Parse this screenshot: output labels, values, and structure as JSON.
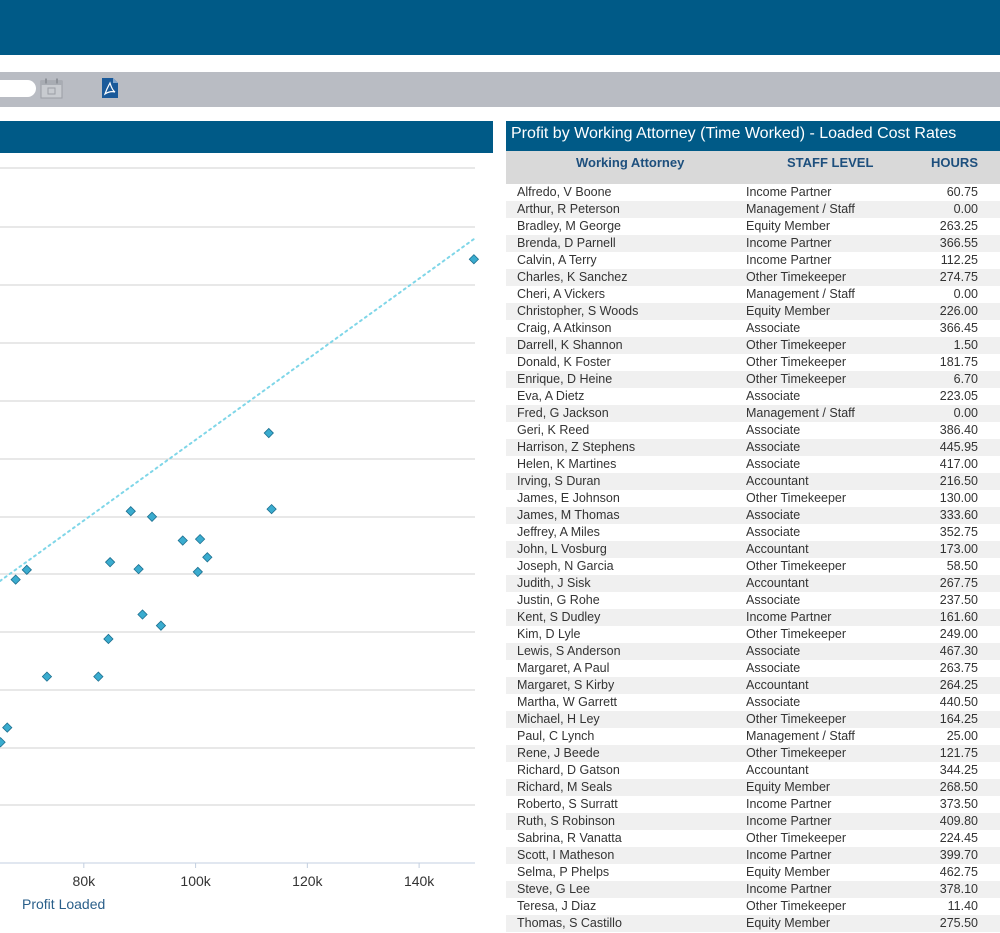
{
  "toolbar": {
    "calendar_icon": "calendar-icon",
    "pdf_icon": "pdf-icon"
  },
  "colors": {
    "header": "#005a87",
    "toolbar": "#b9bcc3",
    "marker": "#3aaccf",
    "trend": "#7fd6e8"
  },
  "chart_data": {
    "type": "scatter",
    "xlabel": "Profit Loaded",
    "x_tick_labels": [
      "80k",
      "100k",
      "120k",
      "140k"
    ],
    "x_tick_values": [
      80000,
      100000,
      120000,
      140000
    ],
    "xlim": [
      65000,
      150000
    ],
    "trendline": {
      "style": "dotted",
      "from": [
        65000,
        59.6
      ],
      "to": [
        150000,
        10.5
      ]
    },
    "points": [
      [
        149800,
        13.5
      ],
      [
        113100,
        38.4
      ],
      [
        113600,
        49.3
      ],
      [
        88400,
        49.6
      ],
      [
        92200,
        50.4
      ],
      [
        97700,
        53.8
      ],
      [
        100800,
        53.6
      ],
      [
        102100,
        56.2
      ],
      [
        69800,
        58.0
      ],
      [
        67800,
        59.4
      ],
      [
        84700,
        56.9
      ],
      [
        89800,
        57.9
      ],
      [
        100400,
        58.3
      ],
      [
        90500,
        64.4
      ],
      [
        93800,
        66.0
      ],
      [
        84400,
        67.9
      ],
      [
        73400,
        73.3
      ],
      [
        82600,
        73.3
      ],
      [
        66300,
        80.6
      ],
      [
        65100,
        82.7
      ]
    ]
  },
  "table": {
    "title": "Profit by Working Attorney (Time Worked) - Loaded Cost Rates",
    "headers": {
      "name": "Working Attorney",
      "level": "STAFF LEVEL",
      "hours": "HOURS"
    },
    "rows": [
      {
        "name": "Alfredo, V Boone",
        "level": "Income Partner",
        "hours": "60.75"
      },
      {
        "name": "Arthur, R Peterson",
        "level": "Management / Staff",
        "hours": "0.00"
      },
      {
        "name": "Bradley, M George",
        "level": "Equity Member",
        "hours": "263.25"
      },
      {
        "name": "Brenda, D Parnell",
        "level": "Income Partner",
        "hours": "366.55"
      },
      {
        "name": "Calvin, A Terry",
        "level": "Income Partner",
        "hours": "112.25"
      },
      {
        "name": "Charles, K Sanchez",
        "level": "Other Timekeeper",
        "hours": "274.75"
      },
      {
        "name": "Cheri, A Vickers",
        "level": "Management / Staff",
        "hours": "0.00"
      },
      {
        "name": "Christopher, S Woods",
        "level": "Equity Member",
        "hours": "226.00"
      },
      {
        "name": "Craig, A Atkinson",
        "level": "Associate",
        "hours": "366.45"
      },
      {
        "name": "Darrell, K Shannon",
        "level": "Other Timekeeper",
        "hours": "1.50"
      },
      {
        "name": "Donald, K Foster",
        "level": "Other Timekeeper",
        "hours": "181.75"
      },
      {
        "name": "Enrique, D Heine",
        "level": "Other Timekeeper",
        "hours": "6.70"
      },
      {
        "name": "Eva, A Dietz",
        "level": "Associate",
        "hours": "223.05"
      },
      {
        "name": "Fred, G Jackson",
        "level": "Management / Staff",
        "hours": "0.00"
      },
      {
        "name": "Geri, K Reed",
        "level": "Associate",
        "hours": "386.40"
      },
      {
        "name": "Harrison, Z Stephens",
        "level": "Associate",
        "hours": "445.95"
      },
      {
        "name": "Helen, K Martines",
        "level": "Associate",
        "hours": "417.00"
      },
      {
        "name": "Irving, S Duran",
        "level": "Accountant",
        "hours": "216.50"
      },
      {
        "name": "James, E Johnson",
        "level": "Other Timekeeper",
        "hours": "130.00"
      },
      {
        "name": "James, M Thomas",
        "level": "Associate",
        "hours": "333.60"
      },
      {
        "name": "Jeffrey, A Miles",
        "level": "Associate",
        "hours": "352.75"
      },
      {
        "name": "John, L Vosburg",
        "level": "Accountant",
        "hours": "173.00"
      },
      {
        "name": "Joseph, N Garcia",
        "level": "Other Timekeeper",
        "hours": "58.50"
      },
      {
        "name": "Judith, J Sisk",
        "level": "Accountant",
        "hours": "267.75"
      },
      {
        "name": "Justin, G Rohe",
        "level": "Associate",
        "hours": "237.50"
      },
      {
        "name": "Kent, S Dudley",
        "level": "Income Partner",
        "hours": "161.60"
      },
      {
        "name": "Kim, D Lyle",
        "level": "Other Timekeeper",
        "hours": "249.00"
      },
      {
        "name": "Lewis, S Anderson",
        "level": "Associate",
        "hours": "467.30"
      },
      {
        "name": "Margaret, A Paul",
        "level": "Associate",
        "hours": "263.75"
      },
      {
        "name": "Margaret, S Kirby",
        "level": "Accountant",
        "hours": "264.25"
      },
      {
        "name": "Martha, W Garrett",
        "level": "Associate",
        "hours": "440.50"
      },
      {
        "name": "Michael, H Ley",
        "level": "Other Timekeeper",
        "hours": "164.25"
      },
      {
        "name": "Paul, C Lynch",
        "level": "Management / Staff",
        "hours": "25.00"
      },
      {
        "name": "Rene, J Beede",
        "level": "Other Timekeeper",
        "hours": "121.75"
      },
      {
        "name": "Richard, D Gatson",
        "level": "Accountant",
        "hours": "344.25"
      },
      {
        "name": "Richard, M Seals",
        "level": "Equity Member",
        "hours": "268.50"
      },
      {
        "name": "Roberto, S Surratt",
        "level": "Income Partner",
        "hours": "373.50"
      },
      {
        "name": "Ruth, S Robinson",
        "level": "Income Partner",
        "hours": "409.80"
      },
      {
        "name": "Sabrina, R Vanatta",
        "level": "Other Timekeeper",
        "hours": "224.45"
      },
      {
        "name": "Scott, I Matheson",
        "level": "Income Partner",
        "hours": "399.70"
      },
      {
        "name": "Selma, P Phelps",
        "level": "Equity Member",
        "hours": "462.75"
      },
      {
        "name": "Steve, G Lee",
        "level": "Income Partner",
        "hours": "378.10"
      },
      {
        "name": "Teresa, J Diaz",
        "level": "Other Timekeeper",
        "hours": "11.40"
      },
      {
        "name": "Thomas, S Castillo",
        "level": "Equity Member",
        "hours": "275.50"
      }
    ]
  }
}
